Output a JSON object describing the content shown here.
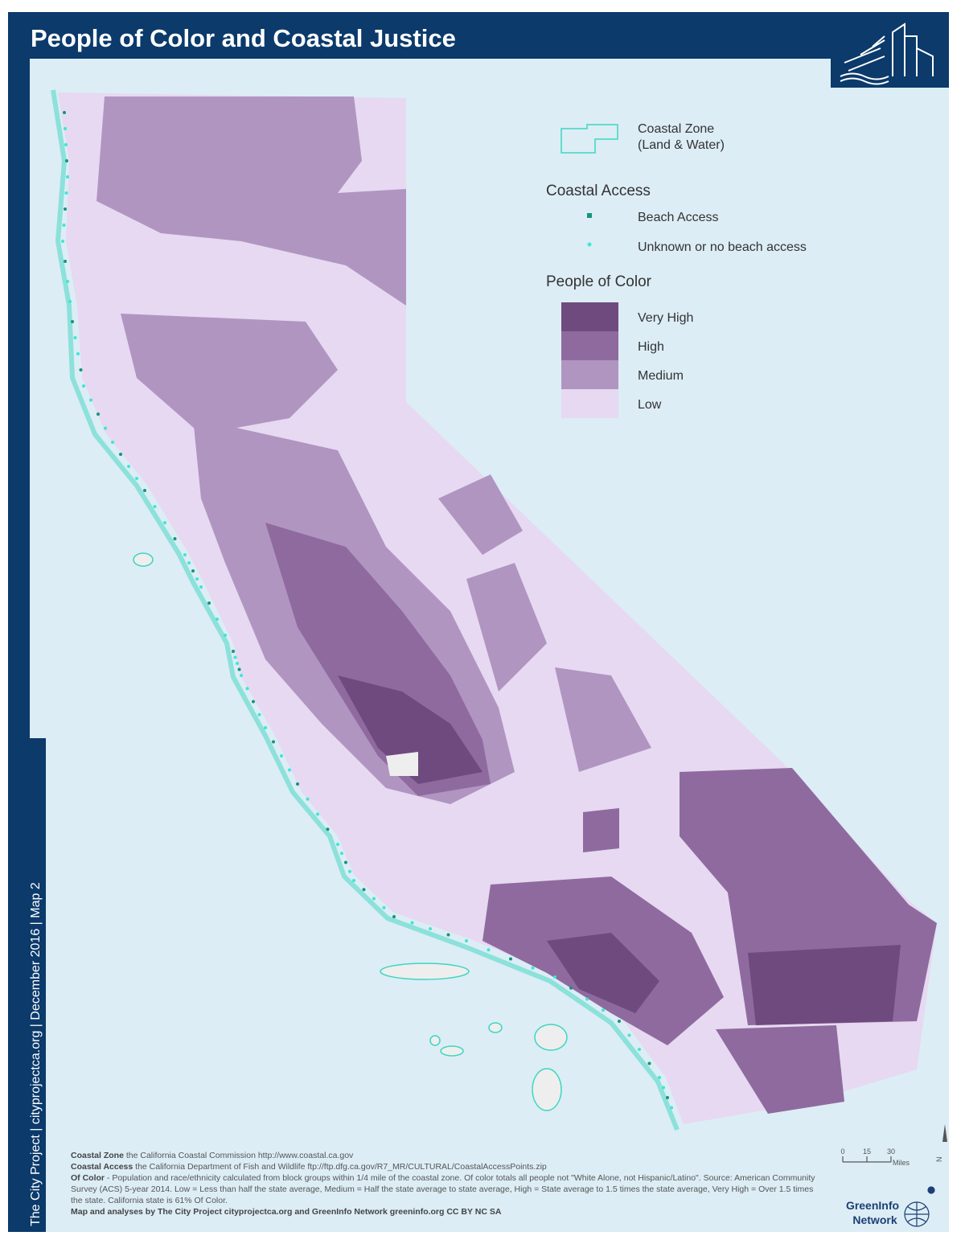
{
  "header": {
    "title": "People of Color and Coastal Justice"
  },
  "sidebar": {
    "text": "The City Project   |   cityprojectca.org   |   December 2016   |   Map 2"
  },
  "legend": {
    "coastal_zone": {
      "lines": [
        "Coastal Zone",
        "(Land & Water)"
      ],
      "color": "#3cd6c0"
    },
    "coastal_access": {
      "title": "Coastal Access",
      "items": [
        {
          "label": "Beach Access",
          "color": "#15957c"
        },
        {
          "label": "Unknown or no beach access",
          "color": "#3ee6d6"
        }
      ]
    },
    "people_of_color": {
      "title": "People of Color",
      "items": [
        {
          "label": "Very High",
          "color": "#6f4a7e"
        },
        {
          "label": "High",
          "color": "#8f6a9f"
        },
        {
          "label": "Medium",
          "color": "#b095c1"
        },
        {
          "label": "Low",
          "color": "#e6d9f1"
        }
      ]
    }
  },
  "notes": [
    {
      "label": "Coastal Zone",
      "text": " the California Coastal Commission http://www.coastal.ca.gov"
    },
    {
      "label": "Coastal Access",
      "text": "  the California Department of Fish and Wildlife ftp://ftp.dfg.ca.gov/R7_MR/CULTURAL/CoastalAccessPoints.zip"
    },
    {
      "label": "Of Color",
      "text": " - Population and race/ethnicity calculated from block groups within 1/4 mile of the coastal zone. Of color totals all people not \"White Alone, not Hispanic/Latino\".  Source: American Community Survey (ACS) 5-year 2014.  Low = Less than half the state average, Medium = Half the state average to state average, High = State average to 1.5 times the state average, Very High = Over 1.5 times the state. California state is  61% Of Color."
    },
    {
      "label": "Map and analyses by The City Project cityprojectca.org and GreenInfo Network greeninfo.org CC BY NC SA"
    }
  ],
  "scale": {
    "ticks": [
      0,
      15,
      30
    ],
    "unit": "Miles"
  },
  "north": "N",
  "logo": {
    "lines": [
      "GreenInfo",
      "Network"
    ]
  }
}
